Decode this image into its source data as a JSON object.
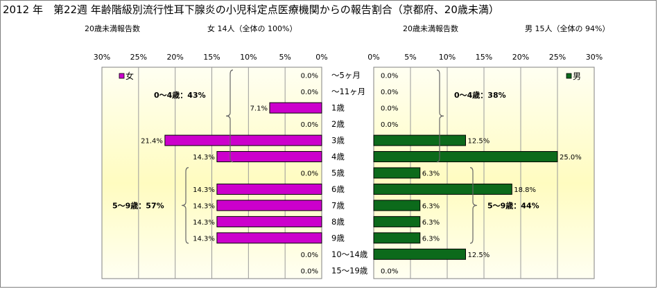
{
  "title": "2012 年　第22週 年齢階級別流行性耳下腺炎の小児科定点医療機関からの報告割合（京都府、20歳未満）",
  "female_summary": {
    "label": "20歳未満報告数",
    "value": "女 14人（全体の 100%）"
  },
  "male_summary": {
    "label": "20歳未満報告数",
    "value": "男 15人（全体の 94%）"
  },
  "colors": {
    "female": "#cc00cc",
    "male": "#0c6a1b",
    "plot_bg_top": "#fffff0",
    "plot_bg_mid": "#fffcc4",
    "brace": "#666666"
  },
  "chart_data": [
    {
      "type": "bar",
      "orientation": "horizontal",
      "direction": "right-to-left",
      "legend": "女",
      "legend_position": "top-left",
      "categories": [
        "～5ヶ月",
        "～11ヶ月",
        "1歳",
        "2歳",
        "3歳",
        "4歳",
        "5歳",
        "6歳",
        "7歳",
        "8歳",
        "9歳",
        "10～14歳",
        "15～19歳"
      ],
      "values": [
        0.0,
        0.0,
        7.1,
        0.0,
        21.4,
        14.3,
        0.0,
        14.3,
        14.3,
        14.3,
        14.3,
        0.0,
        0.0
      ],
      "value_labels": [
        "0.0%",
        "0.0%",
        "7.1%",
        "0.0%",
        "21.4%",
        "14.3%",
        "0.0%",
        "14.3%",
        "14.3%",
        "14.3%",
        "14.3%",
        "0.0%",
        "0.0%"
      ],
      "xlim": [
        0,
        30
      ],
      "xticks": [
        "30%",
        "25%",
        "20%",
        "15%",
        "10%",
        "5%",
        "0%"
      ],
      "grid": "vertical",
      "groups": [
        {
          "label": "0～4歳：43%",
          "from": 0,
          "to": 5
        },
        {
          "label": "5～9歳：57%",
          "from": 6,
          "to": 10
        }
      ]
    },
    {
      "type": "bar",
      "orientation": "horizontal",
      "direction": "left-to-right",
      "legend": "男",
      "legend_position": "top-right",
      "categories": [
        "～5ヶ月",
        "～11ヶ月",
        "1歳",
        "2歳",
        "3歳",
        "4歳",
        "5歳",
        "6歳",
        "7歳",
        "8歳",
        "9歳",
        "10～14歳",
        "15～19歳"
      ],
      "values": [
        0.0,
        0.0,
        0.0,
        0.0,
        12.5,
        25.0,
        6.3,
        18.8,
        6.3,
        6.3,
        6.3,
        12.5,
        0.0
      ],
      "value_labels": [
        "0.0%",
        "0.0%",
        "0.0%",
        "0.0%",
        "12.5%",
        "25.0%",
        "6.3%",
        "18.8%",
        "6.3%",
        "6.3%",
        "6.3%",
        "12.5%",
        "0.0%"
      ],
      "xlim": [
        0,
        30
      ],
      "xticks": [
        "0%",
        "5%",
        "10%",
        "15%",
        "20%",
        "25%",
        "30%"
      ],
      "grid": "vertical",
      "groups": [
        {
          "label": "0～4歳：38%",
          "from": 0,
          "to": 5
        },
        {
          "label": "5～9歳：44%",
          "from": 6,
          "to": 10
        }
      ]
    }
  ]
}
